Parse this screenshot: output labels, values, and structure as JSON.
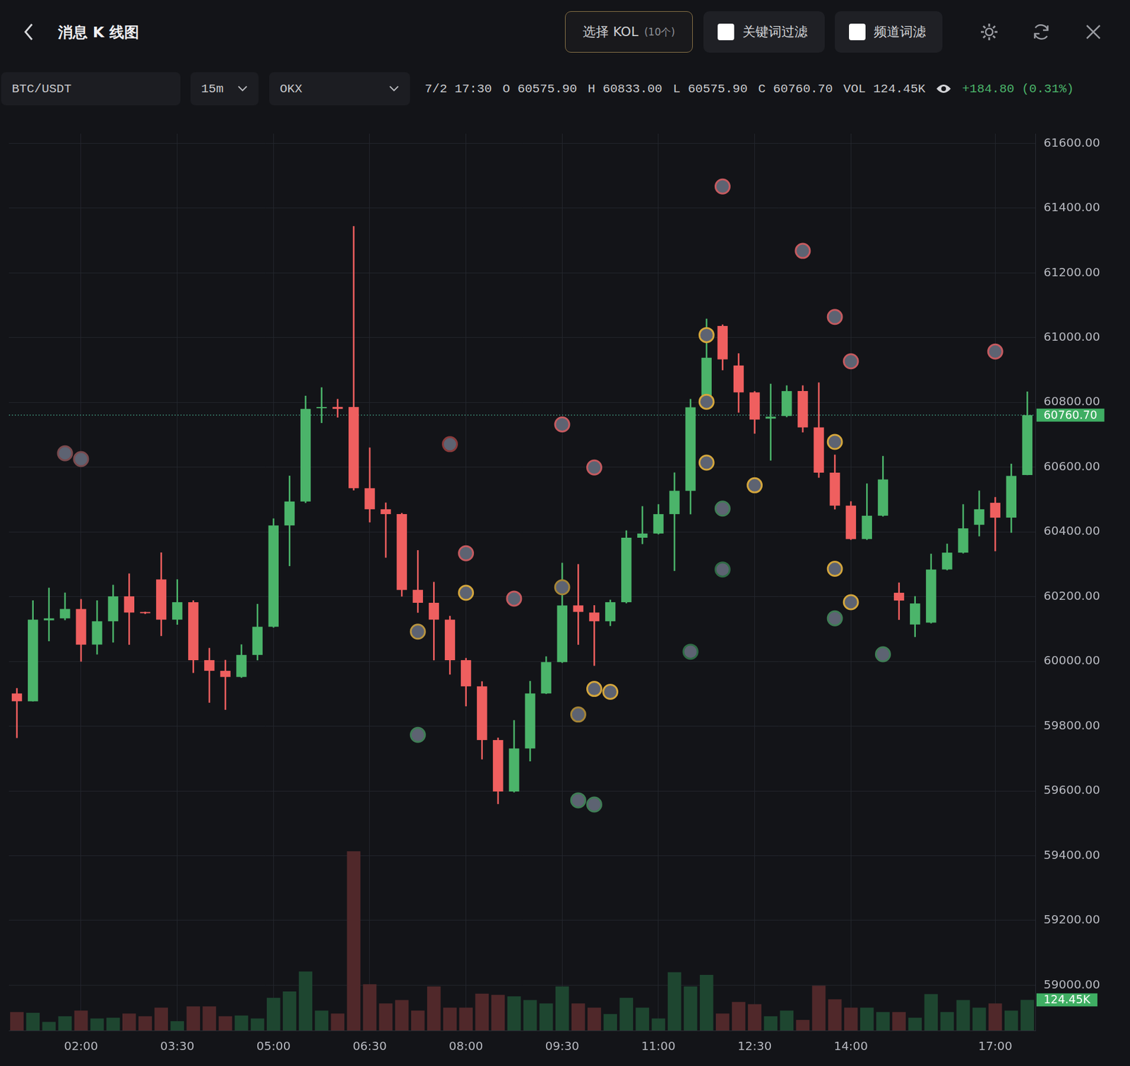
{
  "header": {
    "title": "消息 K 线图",
    "kol_button": "选择 KOL",
    "kol_count": "(10个)",
    "filters": [
      "关键词过滤",
      "频道词滤"
    ]
  },
  "toolbar": {
    "symbol": "BTC/USDT",
    "interval": "15m",
    "exchange": "OKX",
    "time": "7/2 17:30",
    "ohlc": [
      {
        "label": "O",
        "value": "60575.90"
      },
      {
        "label": "H",
        "value": "60833.00"
      },
      {
        "label": "L",
        "value": "60575.90"
      },
      {
        "label": "C",
        "value": "60760.70"
      }
    ],
    "volume": {
      "label": "VOL",
      "value": "124.45K"
    },
    "change": "+184.80 (0.31%)"
  },
  "chart_data": {
    "type": "candlestick",
    "categories": [
      null,
      null,
      null,
      null,
      "02:00",
      null,
      null,
      null,
      null,
      null,
      "03:30",
      null,
      null,
      null,
      null,
      null,
      "05:00",
      null,
      null,
      null,
      null,
      null,
      "06:30",
      null,
      null,
      null,
      null,
      null,
      "08:00",
      null,
      null,
      null,
      null,
      null,
      "09:30",
      null,
      null,
      null,
      null,
      null,
      "11:00",
      null,
      null,
      null,
      null,
      null,
      "12:30",
      null,
      null,
      null,
      null,
      null,
      "14:00",
      null,
      null,
      null,
      null,
      null,
      null,
      null,
      null,
      "17:00",
      null,
      null
    ],
    "series": [
      {
        "type": "candlestick",
        "open": [
          59901,
          59877,
          60127,
          60133,
          60162,
          60052,
          60124,
          60201,
          60151,
          60253,
          60129,
          60183,
          60004,
          59971,
          59952,
          60020,
          60107,
          60420,
          60494,
          60782,
          60786,
          60786,
          60535,
          60470,
          60455,
          60221,
          60181,
          60129,
          60004,
          59923,
          59757,
          59598,
          59731,
          59901,
          59998,
          60173,
          60151,
          60124,
          60183,
          60382,
          60395,
          60455,
          60527,
          60785,
          61036,
          60914,
          60831,
          60750,
          60758,
          60835,
          60723,
          60583,
          60481,
          60378,
          60450,
          60212,
          60114,
          60120,
          60284,
          60336,
          60422,
          60490,
          60444,
          60575.9
        ],
        "high": [
          59917,
          60188,
          60227,
          60212,
          60192,
          60188,
          60236,
          60271,
          60153,
          60336,
          60253,
          60188,
          60041,
          60004,
          60052,
          60177,
          60441,
          60573,
          60820,
          60846,
          60810,
          61344,
          60660,
          60490,
          60458,
          60343,
          60245,
          60140,
          60010,
          59938,
          59764,
          59818,
          59939,
          60015,
          60304,
          60300,
          60173,
          60190,
          60404,
          60479,
          60485,
          60583,
          60810,
          61058,
          61040,
          60951,
          60834,
          60857,
          60852,
          60852,
          60861,
          60638,
          60494,
          60549,
          60634,
          60243,
          60201,
          60332,
          60363,
          60485,
          60527,
          60507,
          60610,
          60833
        ],
        "low": [
          59764,
          59877,
          60063,
          60128,
          60000,
          60022,
          60059,
          60052,
          60147,
          60079,
          60114,
          59965,
          59873,
          59851,
          59950,
          60004,
          60105,
          60295,
          60490,
          60737,
          60754,
          60529,
          60430,
          60321,
          60201,
          60151,
          60004,
          59960,
          59862,
          59698,
          59560,
          59596,
          59692,
          59900,
          59996,
          60052,
          59987,
          60110,
          60180,
          60363,
          60393,
          60280,
          60455,
          60780,
          60900,
          60769,
          60704,
          60621,
          60755,
          60708,
          60568,
          60470,
          60376,
          60376,
          60448,
          60129,
          60076,
          60118,
          60282,
          60334,
          60387,
          60341,
          60398,
          60575.9
        ],
        "close": [
          59877,
          60129,
          60133,
          60162,
          60052,
          60124,
          60201,
          60151,
          60149,
          60129,
          60183,
          60004,
          59971,
          59952,
          60020,
          60107,
          60420,
          60494,
          60780,
          60784,
          60780,
          60535,
          60470,
          60455,
          60221,
          60181,
          60129,
          60004,
          59923,
          59757,
          59598,
          59731,
          59901,
          59998,
          60173,
          60153,
          60124,
          60183,
          60382,
          60395,
          60455,
          60527,
          60785,
          60938,
          60933,
          60831,
          60747,
          60756,
          60835,
          60723,
          60583,
          60481,
          60378,
          60450,
          60562,
          60188,
          60179,
          60284,
          60336,
          60411,
          60470,
          60444,
          60573,
          60760.7
        ],
        "colors": [
          "#ef5f5f",
          "#4bb46a",
          "#4bb46a",
          "#4bb46a",
          "#ef5f5f",
          "#4bb46a",
          "#4bb46a",
          "#ef5f5f",
          "#ef5f5f",
          "#ef5f5f",
          "#4bb46a",
          "#ef5f5f",
          "#ef5f5f",
          "#ef5f5f",
          "#4bb46a",
          "#4bb46a",
          "#4bb46a",
          "#4bb46a",
          "#4bb46a",
          "#4bb46a",
          "#ef5f5f",
          "#ef5f5f",
          "#ef5f5f",
          "#ef5f5f",
          "#ef5f5f",
          "#ef5f5f",
          "#ef5f5f",
          "#ef5f5f",
          "#ef5f5f",
          "#ef5f5f",
          "#ef5f5f",
          "#4bb46a",
          "#4bb46a",
          "#4bb46a",
          "#4bb46a",
          "#ef5f5f",
          "#ef5f5f",
          "#4bb46a",
          "#4bb46a",
          "#4bb46a",
          "#4bb46a",
          "#4bb46a",
          "#4bb46a",
          "#4bb46a",
          "#ef5f5f",
          "#ef5f5f",
          "#ef5f5f",
          "#4bb46a",
          "#4bb46a",
          "#ef5f5f",
          "#ef5f5f",
          "#ef5f5f",
          "#ef5f5f",
          "#4bb46a",
          "#4bb46a",
          "#ef5f5f",
          "#4bb46a",
          "#4bb46a",
          "#4bb46a",
          "#4bb46a",
          "#4bb46a",
          "#ef5f5f",
          "#4bb46a",
          "#4bb46a"
        ]
      },
      {
        "type": "bar",
        "axis": "y2",
        "values": [
          75000,
          72000,
          35000,
          58000,
          81000,
          49000,
          52000,
          69000,
          58000,
          93000,
          38000,
          98000,
          98000,
          58000,
          61000,
          49000,
          133000,
          159000,
          240000,
          81000,
          69000,
          729000,
          188000,
          110000,
          124000,
          81000,
          179000,
          93000,
          93000,
          150000,
          145000,
          139000,
          124000,
          110000,
          179000,
          110000,
          93000,
          67000,
          133000,
          93000,
          49000,
          237000,
          179000,
          226000,
          69000,
          116000,
          107000,
          58000,
          81000,
          43000,
          182000,
          127000,
          93000,
          93000,
          75000,
          75000,
          52000,
          148000,
          75000,
          124000,
          93000,
          110000,
          81000,
          124450
        ],
        "colors": [
          "#50282a",
          "#1e4630",
          "#1e4630",
          "#1e4630",
          "#50282a",
          "#1e4630",
          "#1e4630",
          "#50282a",
          "#50282a",
          "#50282a",
          "#1e4630",
          "#50282a",
          "#50282a",
          "#50282a",
          "#1e4630",
          "#1e4630",
          "#1e4630",
          "#1e4630",
          "#1e4630",
          "#1e4630",
          "#50282a",
          "#50282a",
          "#50282a",
          "#50282a",
          "#50282a",
          "#50282a",
          "#50282a",
          "#50282a",
          "#50282a",
          "#50282a",
          "#50282a",
          "#1e4630",
          "#1e4630",
          "#1e4630",
          "#1e4630",
          "#50282a",
          "#50282a",
          "#1e4630",
          "#1e4630",
          "#1e4630",
          "#1e4630",
          "#1e4630",
          "#1e4630",
          "#1e4630",
          "#50282a",
          "#50282a",
          "#50282a",
          "#1e4630",
          "#1e4630",
          "#50282a",
          "#50282a",
          "#50282a",
          "#50282a",
          "#1e4630",
          "#1e4630",
          "#50282a",
          "#1e4630",
          "#1e4630",
          "#1e4630",
          "#1e4630",
          "#1e4630",
          "#50282a",
          "#1e4630",
          "#1e4630"
        ]
      },
      {
        "type": "scatter",
        "marker": "circle",
        "x": [
          3,
          4,
          27,
          28,
          25,
          28,
          25,
          31,
          34,
          36,
          34,
          36,
          37,
          35,
          35,
          36,
          42,
          44,
          44,
          43,
          43,
          43,
          44,
          46,
          49,
          51,
          52,
          51,
          51,
          52,
          51,
          54,
          61
        ],
        "values": [
          60643,
          60625,
          60671,
          60334,
          60092,
          60212,
          59773,
          60194,
          60732,
          60599,
          60229,
          59915,
          59906,
          59836,
          59571,
          59558,
          60030,
          60284,
          60472,
          60614,
          60802,
          61008,
          61467,
          60544,
          61268,
          61064,
          60927,
          60678,
          60286,
          60183,
          60133,
          60022,
          60957
        ],
        "colors": [
          "#7a4a4e",
          "#7a4a4e",
          "#8a3a3a",
          "#c55a5f",
          "#b8943f",
          "#d4a63c",
          "#3f7d55",
          "#c55a5f",
          "#c55a5f",
          "#c55a5f",
          "#a68536",
          "#d4a63c",
          "#d4a63c",
          "#a68536",
          "#3f7d55",
          "#3f7d55",
          "#2f6b45",
          "#2f6b45",
          "#3f7d55",
          "#d4a63c",
          "#d4a63c",
          "#d4a63c",
          "#c55a5f",
          "#d4a63c",
          "#c55a5f",
          "#c55a5f",
          "#c55a5f",
          "#d4a63c",
          "#d4a63c",
          "#d4a63c",
          "#3f7d55",
          "#3f7d55",
          "#c55a5f"
        ]
      }
    ],
    "ylim": [
      58860,
      61630
    ],
    "yticks": [
      {
        "value": 59000,
        "label": "59000.00"
      },
      {
        "value": 59200,
        "label": "59200.00"
      },
      {
        "value": 59400,
        "label": "59400.00"
      },
      {
        "value": 59600,
        "label": "59600.00"
      },
      {
        "value": 59800,
        "label": "59800.00"
      },
      {
        "value": 60000,
        "label": "60000.00"
      },
      {
        "value": 60200,
        "label": "60200.00"
      },
      {
        "value": 60400,
        "label": "60400.00"
      },
      {
        "value": 60600,
        "label": "60600.00"
      },
      {
        "value": 60800,
        "label": "60800.00"
      },
      {
        "value": 61000,
        "label": "61000.00"
      },
      {
        "value": 61200,
        "label": "61200.00"
      },
      {
        "value": 61400,
        "label": "61400.00"
      },
      {
        "value": 61600,
        "label": "61600.00"
      }
    ],
    "y2lim": [
      0,
      3646000
    ],
    "y2ticks": [
      {
        "value": 124450,
        "label": "124.45K"
      }
    ],
    "annotations": [
      {
        "text": "60760.70",
        "y": 60760.7
      }
    ],
    "grid": true
  }
}
